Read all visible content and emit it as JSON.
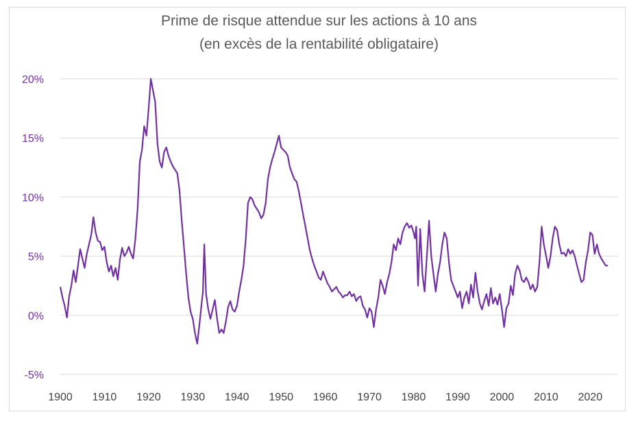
{
  "chart_data": {
    "type": "line",
    "title": "Prime de risque attendue sur les actions à 10 ans",
    "subtitle": "(en excès de la rentabilité obligataire)",
    "xlabel": "",
    "ylabel": "",
    "xlim": [
      1900,
      2024
    ],
    "ylim": [
      -5,
      20
    ],
    "yticks": [
      -5,
      0,
      5,
      10,
      15,
      20
    ],
    "ytick_labels": [
      "-5%",
      "0%",
      "5%",
      "10%",
      "15%",
      "20%"
    ],
    "xticks": [
      1900,
      1910,
      1920,
      1930,
      1940,
      1950,
      1960,
      1970,
      1980,
      1990,
      2000,
      2010,
      2020
    ],
    "xtick_labels": [
      "1900",
      "1910",
      "1920",
      "1930",
      "1940",
      "1950",
      "1960",
      "1970",
      "1980",
      "1990",
      "2000",
      "2010",
      "2020"
    ],
    "grid": "horizontal",
    "series": [
      {
        "name": "Prime de risque",
        "color": "#7030a0",
        "x": [
          1900,
          1900.5,
          1901,
          1901.5,
          1902,
          1902.5,
          1903,
          1903.5,
          1904,
          1904.5,
          1905,
          1905.5,
          1906,
          1906.5,
          1907,
          1907.5,
          1908,
          1908.5,
          1909,
          1909.5,
          1910,
          1910.5,
          1911,
          1911.5,
          1912,
          1912.5,
          1913,
          1913.5,
          1914,
          1914.5,
          1915,
          1915.5,
          1916,
          1916.5,
          1917,
          1917.5,
          1918,
          1918.5,
          1919,
          1919.5,
          1920,
          1920.5,
          1921,
          1921.5,
          1922,
          1922.5,
          1923,
          1923.5,
          1924,
          1924.5,
          1925,
          1925.5,
          1926,
          1926.5,
          1927,
          1927.5,
          1928,
          1928.5,
          1929,
          1929.5,
          1930,
          1930.5,
          1931,
          1931.5,
          1932,
          1932.3,
          1932.6,
          1933,
          1933.5,
          1934,
          1934.5,
          1935,
          1935.5,
          1936,
          1936.5,
          1937,
          1937.5,
          1938,
          1938.5,
          1939,
          1939.5,
          1940,
          1940.5,
          1941,
          1941.5,
          1942,
          1942.5,
          1943,
          1943.5,
          1944,
          1944.5,
          1945,
          1945.5,
          1946,
          1946.5,
          1947,
          1947.5,
          1948,
          1948.5,
          1949,
          1949.5,
          1950,
          1950.5,
          1951,
          1951.5,
          1952,
          1952.5,
          1953,
          1953.5,
          1954,
          1954.5,
          1955,
          1955.5,
          1956,
          1956.5,
          1957,
          1957.5,
          1958,
          1958.5,
          1959,
          1959.5,
          1960,
          1960.5,
          1961,
          1961.5,
          1962,
          1962.5,
          1963,
          1963.5,
          1964,
          1964.5,
          1965,
          1965.5,
          1966,
          1966.5,
          1967,
          1967.5,
          1968,
          1968.5,
          1969,
          1969.5,
          1970,
          1970.5,
          1971,
          1971.5,
          1972,
          1972.5,
          1973,
          1973.5,
          1974,
          1974.5,
          1975,
          1975.5,
          1976,
          1976.5,
          1977,
          1977.5,
          1978,
          1978.5,
          1979,
          1979.5,
          1980,
          1980.3,
          1980.6,
          1981,
          1981.5,
          1982,
          1982.5,
          1983,
          1983.5,
          1984,
          1984.5,
          1985,
          1985.5,
          1986,
          1986.5,
          1987,
          1987.5,
          1988,
          1988.5,
          1989,
          1989.5,
          1990,
          1990.5,
          1991,
          1991.5,
          1992,
          1992.5,
          1993,
          1993.5,
          1994,
          1994.5,
          1995,
          1995.5,
          1996,
          1996.5,
          1997,
          1997.5,
          1998,
          1998.5,
          1999,
          1999.5,
          2000,
          2000.5,
          2001,
          2001.5,
          2002,
          2002.5,
          2003,
          2003.5,
          2004,
          2004.5,
          2005,
          2005.5,
          2006,
          2006.5,
          2007,
          2007.5,
          2008,
          2008.5,
          2009,
          2009.5,
          2010,
          2010.5,
          2011,
          2011.5,
          2012,
          2012.5,
          2013,
          2013.5,
          2014,
          2014.5,
          2015,
          2015.5,
          2016,
          2016.5,
          2017,
          2017.5,
          2018,
          2018.5,
          2019,
          2019.5,
          2020,
          2020.5,
          2021,
          2021.5,
          2022,
          2022.5,
          2023,
          2023.5,
          2024
        ],
        "values": [
          2.4,
          1.5,
          0.8,
          -0.2,
          1.6,
          2.5,
          3.8,
          2.8,
          4.2,
          5.6,
          4.8,
          4.0,
          5.2,
          6.0,
          6.8,
          8.3,
          7.0,
          6.3,
          6.2,
          5.5,
          5.8,
          4.5,
          3.7,
          4.2,
          3.3,
          4.0,
          3.0,
          4.7,
          5.7,
          5.0,
          5.3,
          5.8,
          5.2,
          4.8,
          6.5,
          9.0,
          13.0,
          14.0,
          16.0,
          15.2,
          17.5,
          20.0,
          19.0,
          18.0,
          14.5,
          13.0,
          12.5,
          13.8,
          14.2,
          13.5,
          13.0,
          12.6,
          12.3,
          12.0,
          10.5,
          8.0,
          5.8,
          3.5,
          1.5,
          0.3,
          -0.3,
          -1.5,
          -2.4,
          -0.8,
          1.0,
          2.0,
          6.0,
          1.8,
          0.5,
          -0.3,
          0.5,
          1.3,
          -0.3,
          -1.5,
          -1.2,
          -1.5,
          -0.5,
          0.7,
          1.2,
          0.5,
          0.3,
          0.8,
          2.0,
          3.0,
          4.2,
          6.5,
          9.5,
          10.0,
          9.8,
          9.3,
          9.0,
          8.7,
          8.2,
          8.5,
          9.5,
          11.5,
          12.5,
          13.2,
          13.8,
          14.5,
          15.2,
          14.2,
          14.0,
          13.8,
          13.5,
          12.5,
          12.0,
          11.5,
          11.3,
          10.5,
          9.5,
          8.5,
          7.5,
          6.5,
          5.5,
          4.8,
          4.2,
          3.7,
          3.2,
          3.0,
          3.7,
          3.2,
          2.7,
          2.4,
          2.0,
          2.2,
          2.4,
          2.0,
          1.8,
          1.5,
          1.7,
          1.7,
          2.0,
          1.6,
          1.8,
          1.2,
          1.5,
          1.6,
          0.8,
          0.5,
          -0.2,
          0.6,
          0.3,
          -1.0,
          0.5,
          1.5,
          3.0,
          2.5,
          1.8,
          2.8,
          3.5,
          4.5,
          6.0,
          5.5,
          6.5,
          6.0,
          7.0,
          7.5,
          7.8,
          7.4,
          7.6,
          7.0,
          6.5,
          7.5,
          2.5,
          7.3,
          3.5,
          2.0,
          5.0,
          8.0,
          5.0,
          3.5,
          2.0,
          3.5,
          4.5,
          6.0,
          7.0,
          6.5,
          4.5,
          3.0,
          2.5,
          2.0,
          1.5,
          2.0,
          0.6,
          1.5,
          2.0,
          1.0,
          2.6,
          1.5,
          3.6,
          2.0,
          1.0,
          0.5,
          1.2,
          1.8,
          0.8,
          2.3,
          1.0,
          1.5,
          0.9,
          1.8,
          0.5,
          -1.0,
          0.6,
          1.0,
          2.5,
          1.7,
          3.5,
          4.2,
          3.8,
          3.0,
          2.8,
          3.2,
          2.8,
          2.2,
          2.6,
          2.0,
          2.4,
          4.5,
          7.5,
          6.0,
          5.0,
          4.0,
          5.0,
          6.5,
          7.5,
          7.2,
          6.0,
          5.2,
          5.3,
          5.0,
          5.6,
          5.2,
          5.5,
          5.0,
          4.2,
          3.5,
          2.8,
          3.0,
          4.5,
          5.5,
          7.0,
          6.8,
          5.2,
          6.0,
          5.2,
          4.8,
          4.5,
          4.2,
          4.2
        ]
      }
    ]
  }
}
